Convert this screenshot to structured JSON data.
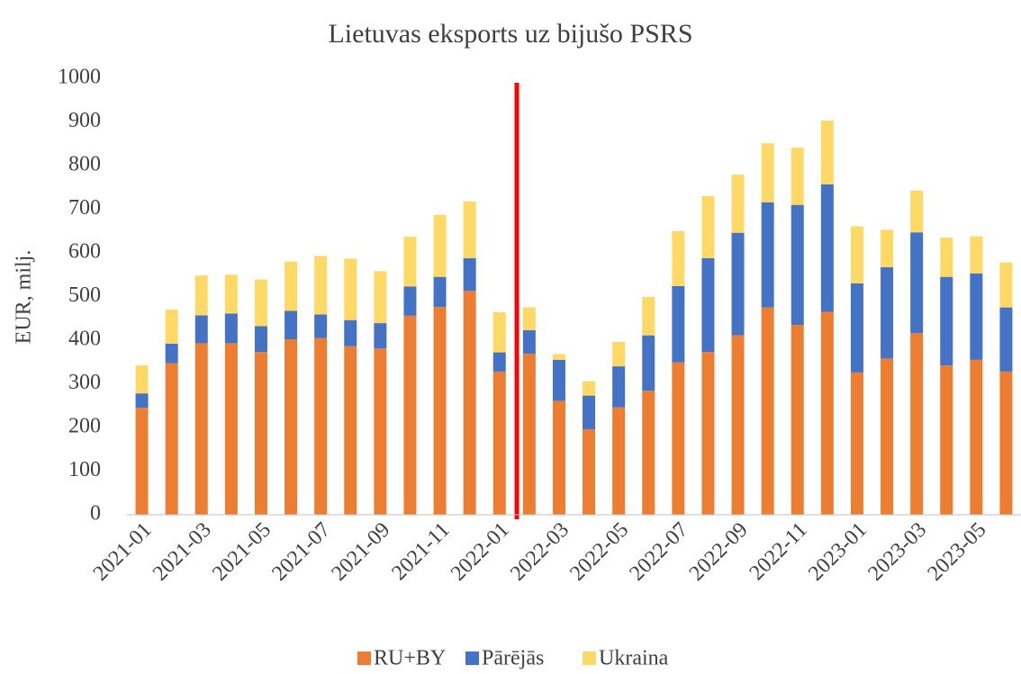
{
  "chart_data": {
    "type": "bar",
    "stacked": true,
    "title": "Lietuvas eksports uz bijušo PSRS",
    "y_label": "EUR, milj.",
    "categories": [
      "2021-01",
      null,
      "2021-03",
      null,
      "2021-05",
      null,
      "2021-07",
      null,
      "2021-09",
      null,
      "2021-11",
      null,
      "2022-01",
      null,
      "2022-03",
      null,
      "2022-05",
      null,
      "2022-07",
      null,
      "2022-09",
      null,
      "2022-11",
      null,
      "2023-01",
      null,
      "2023-03",
      null,
      "2023-05",
      null
    ],
    "series": [
      {
        "name": "RU+BY",
        "color": "#ed7d31",
        "values": [
          245,
          347,
          393,
          393,
          373,
          402,
          405,
          386,
          381,
          456,
          476,
          513,
          328,
          369,
          261,
          196,
          246,
          284,
          349,
          373,
          411,
          475,
          435,
          465,
          326,
          358,
          416,
          342,
          355,
          328
        ]
      },
      {
        "name": "Pārējās",
        "color": "#4472c4",
        "values": [
          33,
          45,
          64,
          68,
          59,
          65,
          54,
          60,
          58,
          67,
          69,
          75,
          44,
          54,
          94,
          77,
          94,
          127,
          175,
          215,
          235,
          241,
          275,
          292,
          204,
          209,
          231,
          203,
          198,
          147
        ]
      },
      {
        "name": "Ukraina",
        "color": "#ffd966",
        "values": [
          64,
          78,
          91,
          89,
          107,
          113,
          134,
          141,
          119,
          114,
          142,
          130,
          92,
          52,
          13,
          33,
          56,
          88,
          126,
          142,
          133,
          135,
          131,
          146,
          131,
          86,
          96,
          90,
          85,
          103
        ]
      }
    ],
    "ylim": [
      0,
      1000
    ],
    "yticks": [
      0,
      100,
      200,
      300,
      400,
      500,
      600,
      700,
      800,
      900,
      1000
    ],
    "grid": false,
    "legend": "bottom"
  }
}
